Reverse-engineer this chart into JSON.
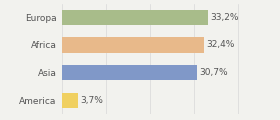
{
  "categories": [
    "Europa",
    "Africa",
    "Asia",
    "America"
  ],
  "values": [
    33.2,
    32.4,
    30.7,
    3.7
  ],
  "labels": [
    "33,2%",
    "32,4%",
    "30,7%",
    "3,7%"
  ],
  "bar_colors": [
    "#a8bc8a",
    "#e8b98a",
    "#8098c8",
    "#f0d060"
  ],
  "background_color": "#f2f2ee",
  "xlim": [
    0,
    42
  ],
  "bar_height": 0.55,
  "label_fontsize": 6.5,
  "tick_fontsize": 6.5,
  "grid_color": "#d8d8d8"
}
